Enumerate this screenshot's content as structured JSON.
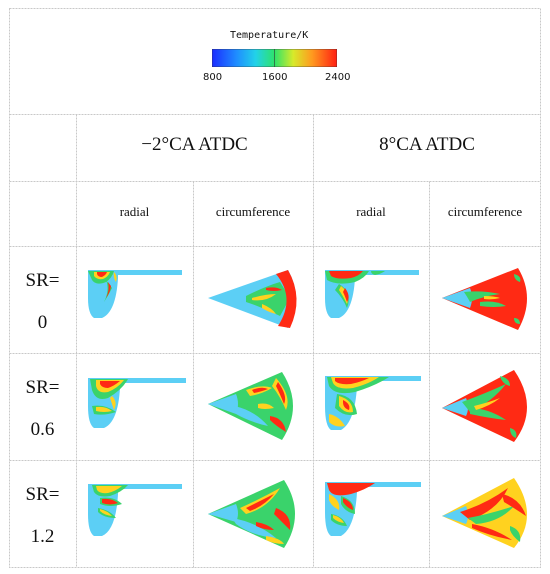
{
  "legend": {
    "title": "Temperature/K",
    "ticks": [
      "800",
      "1600",
      "2400"
    ],
    "colors": [
      "#1e3cff",
      "#1fb6ff",
      "#2ee36a",
      "#d7ea2a",
      "#ff9a1f",
      "#ff2a14"
    ]
  },
  "headers": {
    "col_groups": [
      "−2°CA ATDC",
      "8°CA ATDC"
    ],
    "subcols": [
      "radial",
      "circumference",
      "radial",
      "circumference"
    ]
  },
  "rows": [
    {
      "line1": "SR=",
      "line2": "0"
    },
    {
      "line1": "SR=",
      "line2": "0.6"
    },
    {
      "line1": "SR=",
      "line2": "1.2"
    }
  ],
  "colors": {
    "cold": "#5ccff5",
    "mid": "#3ad36b",
    "warm": "#ffd21f",
    "hot": "#ff2a14",
    "grid": "#c8c8c8"
  }
}
